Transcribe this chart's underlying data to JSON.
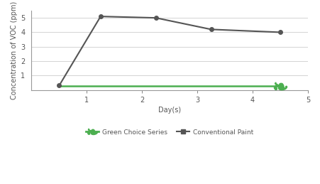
{
  "gray_x": [
    0.5,
    1.25,
    2.25,
    3.25,
    4.5
  ],
  "gray_y": [
    0.3,
    5.1,
    5.0,
    4.2,
    4.0
  ],
  "green_x": [
    0.5,
    4.5
  ],
  "green_y": [
    0.25,
    0.25
  ],
  "gray_color": "#555555",
  "green_color": "#4caf50",
  "bg_color": "#ffffff",
  "plot_bg": "#ffffff",
  "text_color": "#555555",
  "grid_color": "#cccccc",
  "spine_color": "#999999",
  "ylabel": "Concentration of VOC (ppm)",
  "xlabel": "Day(s)",
  "xlim": [
    0,
    5
  ],
  "ylim": [
    0,
    5.5
  ],
  "yticks": [
    0,
    1,
    2,
    3,
    4,
    5
  ],
  "xticks": [
    1,
    2,
    3,
    4,
    5
  ],
  "legend_green_label": "Green Choice Series",
  "legend_gray_label": "Conventional Paint",
  "axis_fontsize": 7,
  "legend_fontsize": 6.5
}
